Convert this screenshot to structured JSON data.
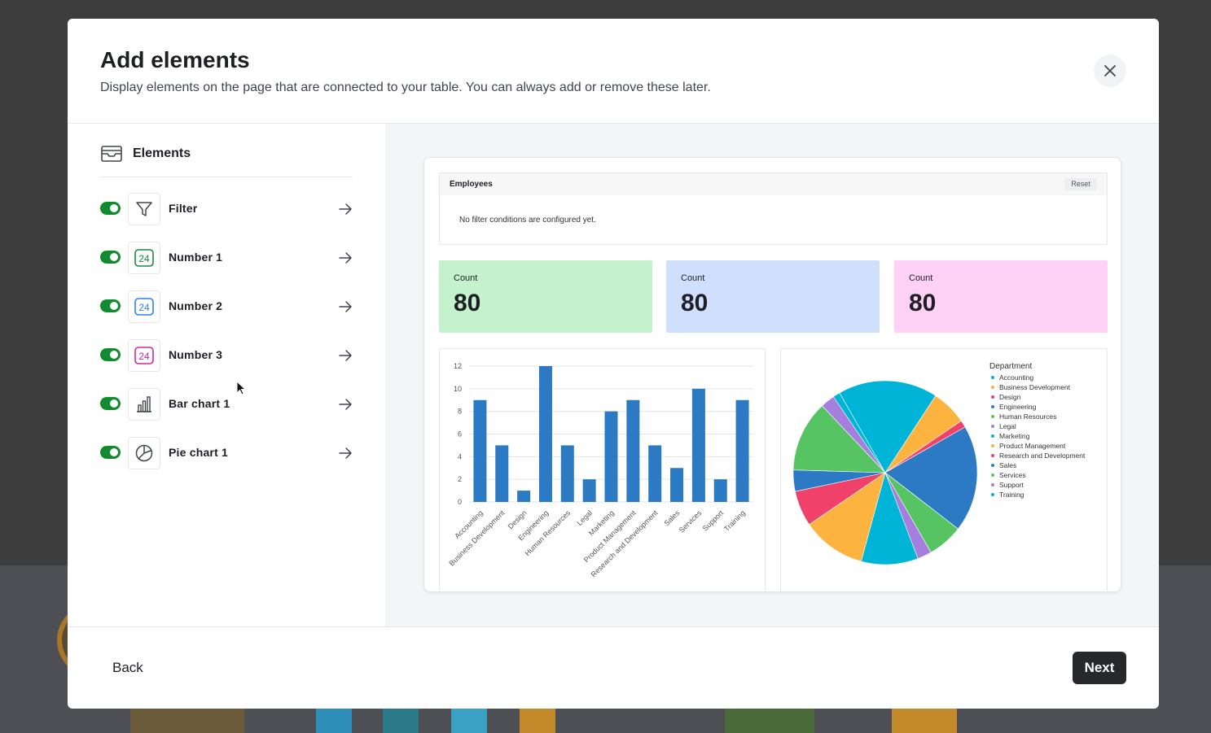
{
  "modal": {
    "title": "Add elements",
    "subtitle": "Display elements on the page that are connected to your table. You can always add or remove these later."
  },
  "sidebar": {
    "heading": "Elements",
    "items": [
      {
        "label": "Filter",
        "icon": "filter-icon",
        "enabled": true
      },
      {
        "label": "Number 1",
        "icon": "number-green-icon",
        "enabled": true,
        "icon_text": "24",
        "color": "#1a8a3c"
      },
      {
        "label": "Number 2",
        "icon": "number-blue-icon",
        "enabled": true,
        "icon_text": "24",
        "color": "#2d7ff9"
      },
      {
        "label": "Number 3",
        "icon": "number-pink-icon",
        "enabled": true,
        "icon_text": "24",
        "color": "#d3249a"
      },
      {
        "label": "Bar chart 1",
        "icon": "bar-chart-icon",
        "enabled": true
      },
      {
        "label": "Pie chart 1",
        "icon": "pie-chart-icon",
        "enabled": true
      }
    ]
  },
  "preview": {
    "filter": {
      "title": "Employees",
      "reset_label": "Reset",
      "empty_text": "No filter conditions are configured yet."
    },
    "numbers": [
      {
        "label": "Count",
        "value": "80",
        "bg": "#c4f2cc"
      },
      {
        "label": "Count",
        "value": "80",
        "bg": "#cfdffc"
      },
      {
        "label": "Count",
        "value": "80",
        "bg": "#ffd1f6"
      }
    ]
  },
  "footer": {
    "back_label": "Back",
    "next_label": "Next"
  },
  "chart_data": [
    {
      "type": "bar",
      "categories": [
        "Accounting",
        "Business Development",
        "Design",
        "Engineering",
        "Human Resources",
        "Legal",
        "Marketing",
        "Product Management",
        "Research and Development",
        "Sales",
        "Services",
        "Support",
        "Training"
      ],
      "values": [
        9,
        5,
        1,
        12,
        5,
        2,
        8,
        9,
        5,
        3,
        10,
        2,
        9
      ],
      "ylim": [
        0,
        12
      ],
      "yticks": [
        "0",
        "2",
        "4",
        "6",
        "8",
        "10",
        "12"
      ],
      "grid": true,
      "color": "#2d7ac4"
    },
    {
      "type": "pie",
      "legend_title": "Department",
      "legend_position": "right",
      "slices": [
        {
          "label": "Accounting",
          "value": 14,
          "color": "#00b4d8"
        },
        {
          "label": "Business Development",
          "value": 5,
          "color": "#fcb340"
        },
        {
          "label": "Design",
          "value": 1,
          "color": "#f0416a"
        },
        {
          "label": "Engineering",
          "value": 15,
          "color": "#2d7ac4"
        },
        {
          "label": "Human Resources",
          "value": 5,
          "color": "#57c463"
        },
        {
          "label": "Legal",
          "value": 2,
          "color": "#a57fde"
        },
        {
          "label": "Marketing",
          "value": 8,
          "color": "#00b4d8"
        },
        {
          "label": "Product Management",
          "value": 9,
          "color": "#fcb340"
        },
        {
          "label": "Research and Development",
          "value": 5,
          "color": "#f0416a"
        },
        {
          "label": "Sales",
          "value": 3,
          "color": "#2d7ac4"
        },
        {
          "label": "Services",
          "value": 10,
          "color": "#57c463"
        },
        {
          "label": "Support",
          "value": 2,
          "color": "#a57fde"
        },
        {
          "label": "Training",
          "value": 1,
          "color": "#00b4d8"
        }
      ]
    }
  ]
}
